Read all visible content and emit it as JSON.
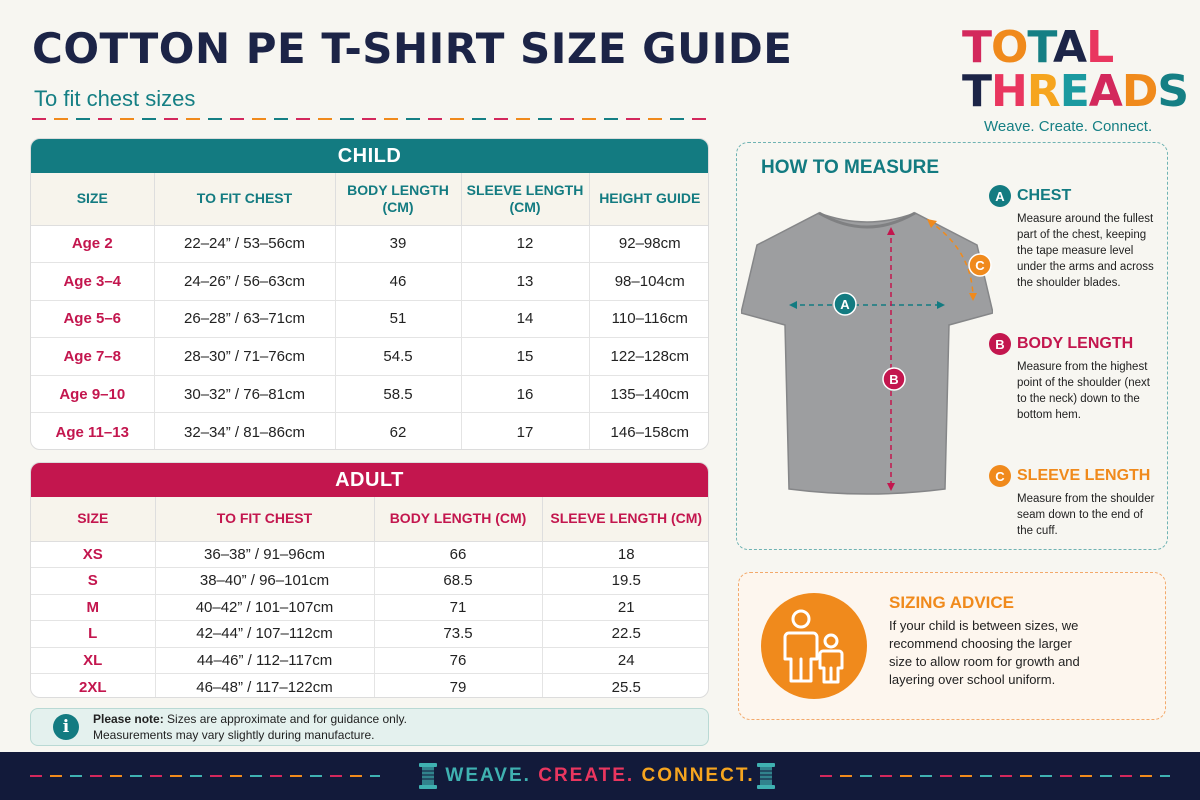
{
  "header": {
    "title": "COTTON PE T-SHIRT SIZE GUIDE",
    "subtitle": "To fit chest sizes"
  },
  "logo": {
    "line1": "TOTAL",
    "line2": "THREADS",
    "tagline": "Weave. Create. Connect.",
    "colors": [
      "#d3285c",
      "#f08a1c",
      "#157f84",
      "#1c2447",
      "#e9365f",
      "#f6a51f",
      "#1b9aa0"
    ]
  },
  "child_table": {
    "heading": "CHILD",
    "columns": [
      "SIZE",
      "TO FIT CHEST",
      "BODY LENGTH (CM)",
      "SLEEVE LENGTH (CM)",
      "HEIGHT GUIDE"
    ],
    "rows": [
      [
        "Age 2",
        "22–24” / 53–56cm",
        "39",
        "12",
        "92–98cm"
      ],
      [
        "Age 3–4",
        "24–26” / 56–63cm",
        "46",
        "13",
        "98–104cm"
      ],
      [
        "Age 5–6",
        "26–28” / 63–71cm",
        "51",
        "14",
        "110–116cm"
      ],
      [
        "Age 7–8",
        "28–30” / 71–76cm",
        "54.5",
        "15",
        "122–128cm"
      ],
      [
        "Age 9–10",
        "30–32” / 76–81cm",
        "58.5",
        "16",
        "135–140cm"
      ],
      [
        "Age 11–13",
        "32–34” / 81–86cm",
        "62",
        "17",
        "146–158cm"
      ]
    ]
  },
  "adult_table": {
    "heading": "ADULT",
    "columns": [
      "SIZE",
      "TO FIT CHEST",
      "BODY LENGTH (CM)",
      "SLEEVE LENGTH (CM)"
    ],
    "rows": [
      [
        "XS",
        "36–38” / 91–96cm",
        "66",
        "18"
      ],
      [
        "S",
        "38–40” / 96–101cm",
        "68.5",
        "19.5"
      ],
      [
        "M",
        "40–42” / 101–107cm",
        "71",
        "21"
      ],
      [
        "L",
        "42–44” / 107–112cm",
        "73.5",
        "22.5"
      ],
      [
        "XL",
        "44–46” / 112–117cm",
        "76",
        "24"
      ],
      [
        "2XL",
        "46–48” / 117–122cm",
        "79",
        "25.5"
      ]
    ]
  },
  "note": {
    "icon": "info-icon",
    "label": "Please note:",
    "line1": " Sizes are approximate and for guidance only.",
    "line2": "Measurements may vary slightly during manufacture."
  },
  "how_to_measure": {
    "title": "HOW TO MEASURE",
    "items": [
      {
        "badge": "A",
        "title": "CHEST",
        "color": "#137b81",
        "desc": "Measure around the fullest part of the chest, keeping the tape measure level under the arms and across the shoulder blades."
      },
      {
        "badge": "B",
        "title": "BODY LENGTH",
        "color": "#c3164e",
        "desc": "Measure from the highest point of the shoulder (next to the neck) down to the bottom hem."
      },
      {
        "badge": "C",
        "title": "SLEEVE LENGTH",
        "color": "#f08a1c",
        "desc": "Measure from the shoulder seam down to the end of the cuff."
      }
    ]
  },
  "sizing_advice": {
    "title": "SIZING ADVICE",
    "text": "If your child is between sizes, we recommend choosing the larger size to allow room for growth and layering over school uniform.",
    "icon": "parent-child-icon"
  },
  "footer": {
    "slogan_parts": [
      "WEAVE.",
      "CREATE.",
      "CONNECT."
    ],
    "slogan_colors": [
      "#3fb1b1",
      "#e9365f",
      "#f6a51f"
    ],
    "icon": "thread-spool-icon"
  }
}
